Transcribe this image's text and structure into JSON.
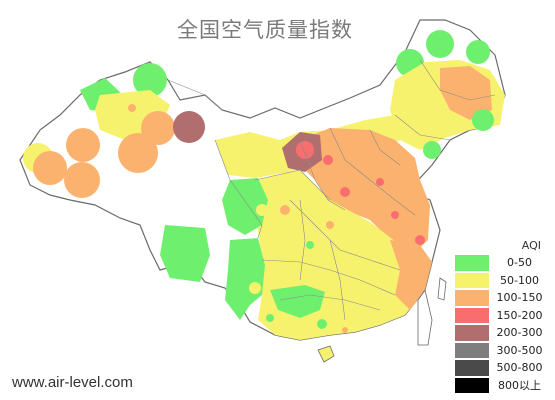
{
  "title": "全国空气质量指数",
  "website": "www.air-level.com",
  "legend": {
    "title": "AQI",
    "items": [
      {
        "label": "0-50",
        "color": "#6ef06e"
      },
      {
        "label": "50-100",
        "color": "#f7f26e"
      },
      {
        "label": "100-150",
        "color": "#fbb26e"
      },
      {
        "label": "150-200",
        "color": "#f86e6e"
      },
      {
        "label": "200-300",
        "color": "#b06e6e"
      },
      {
        "label": "300-500",
        "color": "#7e7e7e"
      },
      {
        "label": "500-800",
        "color": "#4a4a4a"
      },
      {
        "label": "800以上",
        "color": "#000000"
      }
    ]
  }
}
